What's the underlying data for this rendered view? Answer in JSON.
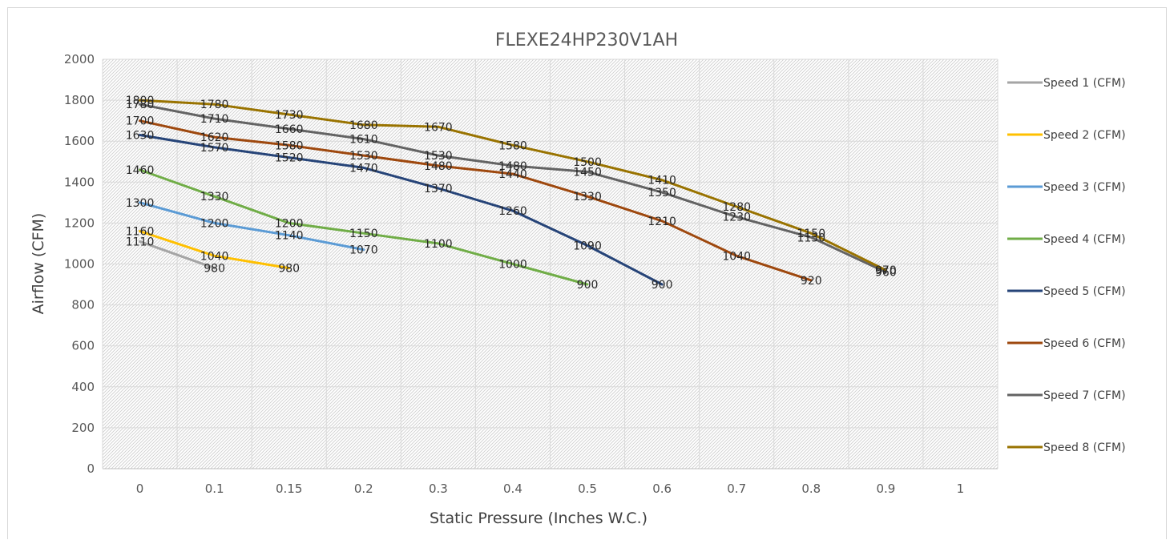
{
  "chart_data": {
    "type": "line",
    "title": "FLEXE24HP230V1AH",
    "xlabel": "Static Pressure (Inches W.C.)",
    "ylabel": "Airflow (CFM)",
    "categories": [
      "0",
      "0.1",
      "0.15",
      "0.2",
      "0.3",
      "0.4",
      "0.5",
      "0.6",
      "0.7",
      "0.8",
      "0.9",
      "1"
    ],
    "y_ticks": [
      "0",
      "200",
      "400",
      "600",
      "800",
      "1000",
      "1200",
      "1400",
      "1600",
      "1800",
      "2000"
    ],
    "ylim": [
      0,
      2000
    ],
    "grid": true,
    "legend_position": "right",
    "series": [
      {
        "name": "Speed 1 (CFM)",
        "color": "#a5a5a5",
        "values": [
          1110,
          980,
          null,
          null,
          null,
          null,
          null,
          null,
          null,
          null,
          null,
          null
        ]
      },
      {
        "name": "Speed 2 (CFM)",
        "color": "#ffc000",
        "values": [
          1160,
          1040,
          980,
          null,
          null,
          null,
          null,
          null,
          null,
          null,
          null,
          null
        ]
      },
      {
        "name": "Speed 3 (CFM)",
        "color": "#5b9bd5",
        "values": [
          1300,
          1200,
          1140,
          1070,
          null,
          null,
          null,
          null,
          null,
          null,
          null,
          null
        ]
      },
      {
        "name": "Speed 4 (CFM)",
        "color": "#70ad47",
        "values": [
          1460,
          1330,
          1200,
          1150,
          1100,
          1000,
          900,
          null,
          null,
          null,
          null,
          null
        ]
      },
      {
        "name": "Speed 5 (CFM)",
        "color": "#264478",
        "values": [
          1630,
          1570,
          1520,
          1470,
          1370,
          1260,
          1090,
          900,
          null,
          null,
          null,
          null
        ]
      },
      {
        "name": "Speed 6 (CFM)",
        "color": "#9e480e",
        "values": [
          1700,
          1620,
          1580,
          1530,
          1480,
          1440,
          1330,
          1210,
          1040,
          920,
          null,
          null
        ]
      },
      {
        "name": "Speed 7 (CFM)",
        "color": "#636363",
        "values": [
          1780,
          1710,
          1660,
          1610,
          1530,
          1480,
          1450,
          1350,
          1230,
          1130,
          960,
          null
        ]
      },
      {
        "name": "Speed 8 (CFM)",
        "color": "#997300",
        "values": [
          1800,
          1780,
          1730,
          1680,
          1670,
          1580,
          1500,
          1410,
          1280,
          1150,
          970,
          null
        ]
      }
    ]
  }
}
